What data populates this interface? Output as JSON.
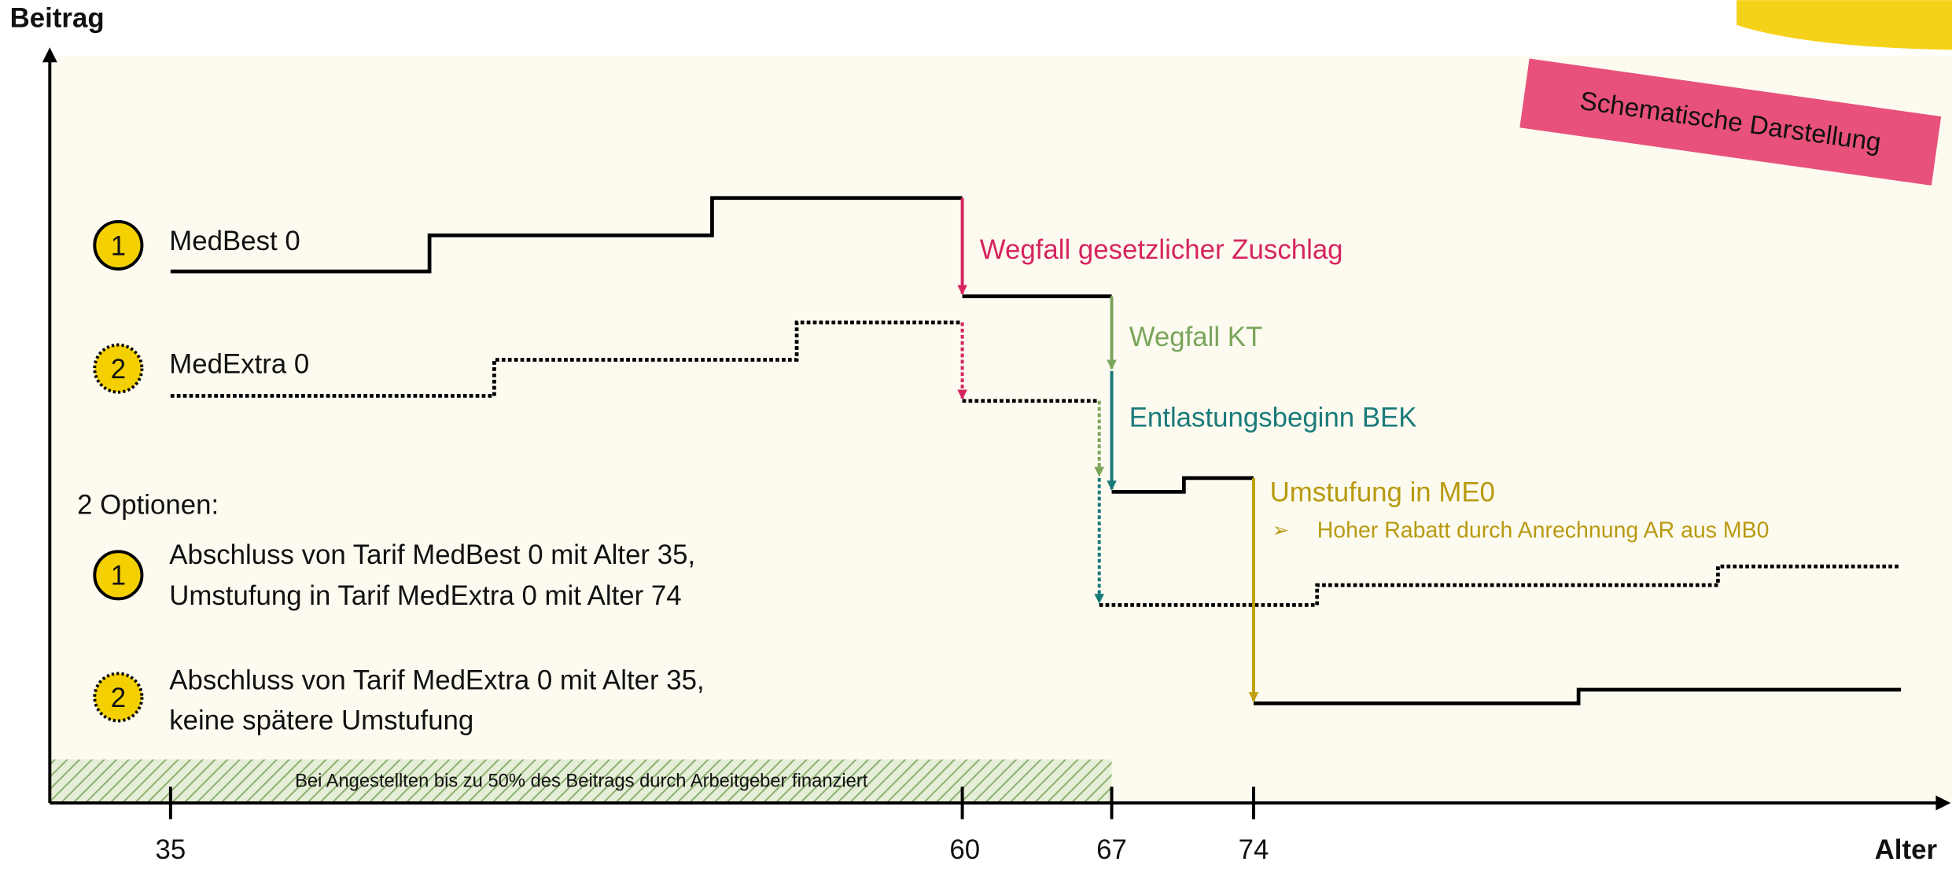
{
  "axis_labels": {
    "y": "Beitrag",
    "x": "Alter"
  },
  "x_ticks": [
    "35",
    "60",
    "67",
    "74"
  ],
  "badge": "Schematische Darstellung",
  "legend": [
    {
      "marker": "1",
      "label": "MedBest 0"
    },
    {
      "marker": "2",
      "label": "MedExtra 0"
    }
  ],
  "annotations": {
    "red": "Wegfall gesetzlicher Zuschlag",
    "green": "Wegfall KT",
    "teal": "Entlastungsbeginn BEK",
    "olive": "Umstufung in ME0",
    "olive_bullet": "Hoher Rabatt durch Anrechnung AR aus MB0"
  },
  "options": {
    "title": "2 Optionen:",
    "items": [
      {
        "marker": "1",
        "lines": [
          "Abschluss von Tarif MedBest 0 mit Alter 35,",
          "Umstufung in Tarif MedExtra 0 mit Alter 74"
        ]
      },
      {
        "marker": "2",
        "lines": [
          "Abschluss von Tarif MedExtra 0 mit Alter 35,",
          "keine spätere Umstufung"
        ]
      }
    ]
  },
  "footer_band": "Bei Angestellten bis zu 50% des Beitrags durch Arbeitgeber finanziert"
}
